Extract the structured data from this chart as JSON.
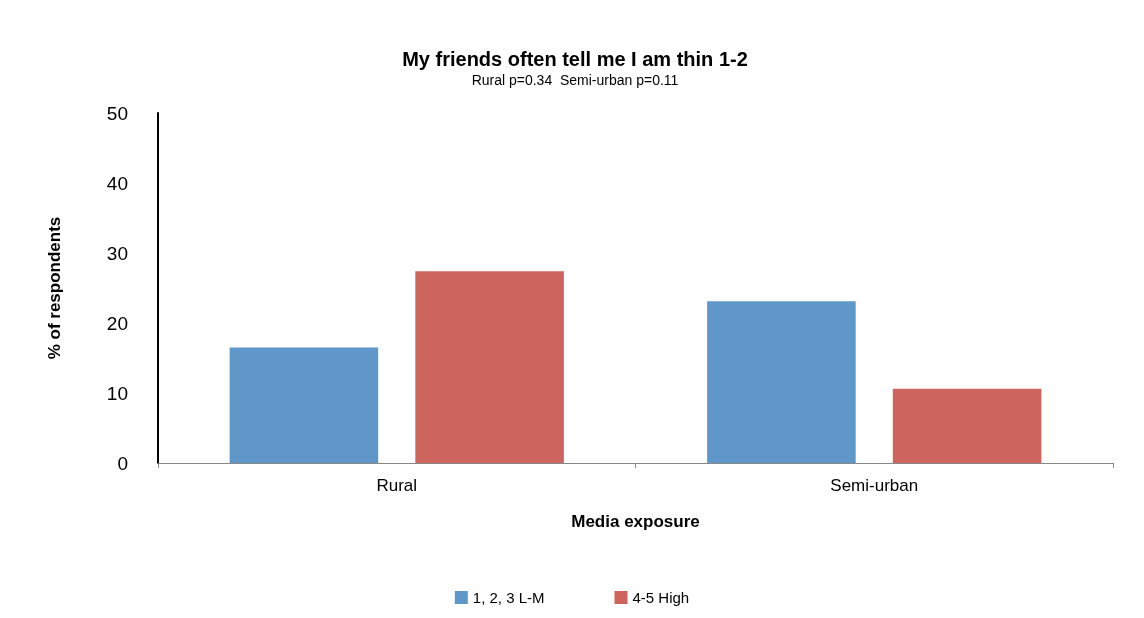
{
  "chart_data": {
    "type": "bar",
    "title": "My friends often tell me I am thin 1-2",
    "subtitle": "Rural p=0.34  Semi-urban p=0.11",
    "xlabel": "Media exposure",
    "ylabel": "% of respondents",
    "categories": [
      "Rural",
      "Semi-urban"
    ],
    "series": [
      {
        "name": "1, 2, 3 L-M",
        "color": "#5f97c9",
        "values": [
          16.5,
          23.1
        ]
      },
      {
        "name": "4-5 High",
        "color": "#cd655e",
        "values": [
          27.4,
          10.6
        ]
      }
    ],
    "ylim": [
      0,
      50
    ],
    "yticks": [
      0,
      10,
      20,
      30,
      40,
      50
    ],
    "grid": false,
    "legend": "bottom"
  }
}
